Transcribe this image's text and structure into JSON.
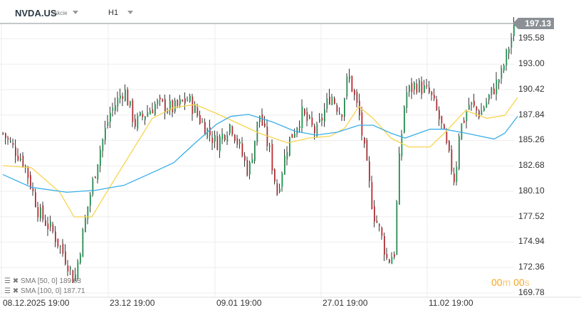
{
  "header": {
    "symbol": "NVDA.US",
    "type": "Akcie",
    "timeframe": "H1"
  },
  "current_price": "197.13",
  "timer": {
    "m": "00",
    "m_unit": "m",
    "s": "00",
    "s_unit": "s"
  },
  "legend": [
    {
      "label": "SMA [50, 0]",
      "value": "189.63",
      "color": "#f7d44c"
    },
    {
      "label": "SMA [100, 0]",
      "value": "187.71",
      "color": "#3aaee8"
    }
  ],
  "chart_data": {
    "type": "candlestick",
    "y_ticks": [
      "195.58",
      "193.00",
      "190.42",
      "187.84",
      "185.26",
      "182.68",
      "180.10",
      "177.52",
      "174.94",
      "172.36",
      "169.78"
    ],
    "ylim": [
      169.78,
      197.13
    ],
    "x_ticks": [
      {
        "label": "08.12.2025  19:00",
        "t": 0
      },
      {
        "label": "23.12  19:00",
        "t": 30
      },
      {
        "label": "09.01  19:00",
        "t": 60
      },
      {
        "label": "27.01  19:00",
        "t": 90
      },
      {
        "label": "11.02  19:00",
        "t": 120
      }
    ],
    "price_path": [
      [
        0,
        186
      ],
      [
        6,
        183
      ],
      [
        10,
        178
      ],
      [
        14,
        176
      ],
      [
        18,
        173
      ],
      [
        20,
        171
      ],
      [
        22,
        175
      ],
      [
        24,
        179
      ],
      [
        27,
        184
      ],
      [
        30,
        188
      ],
      [
        34,
        190.5
      ],
      [
        37,
        187
      ],
      [
        40,
        188
      ],
      [
        43,
        189
      ],
      [
        48,
        188.5
      ],
      [
        52,
        189.5
      ],
      [
        56,
        187
      ],
      [
        60,
        185
      ],
      [
        64,
        187
      ],
      [
        67,
        184
      ],
      [
        69,
        182
      ],
      [
        72,
        188
      ],
      [
        75,
        184
      ],
      [
        77,
        180
      ],
      [
        80,
        185
      ],
      [
        84,
        188
      ],
      [
        88,
        186
      ],
      [
        92,
        190
      ],
      [
        95,
        188
      ],
      [
        97,
        192
      ],
      [
        100,
        188
      ],
      [
        102,
        183
      ],
      [
        104,
        178
      ],
      [
        106,
        176
      ],
      [
        108,
        173
      ],
      [
        110,
        174
      ],
      [
        111,
        182
      ],
      [
        113,
        190
      ],
      [
        116,
        191
      ],
      [
        120,
        190
      ],
      [
        123,
        187
      ],
      [
        125,
        184
      ],
      [
        127,
        181
      ],
      [
        128,
        186
      ],
      [
        131,
        189
      ],
      [
        134,
        188
      ],
      [
        137,
        190
      ],
      [
        140,
        192
      ],
      [
        143,
        196
      ],
      [
        144,
        197.13
      ]
    ],
    "sma50": [
      [
        0,
        182.7
      ],
      [
        8,
        182.5
      ],
      [
        16,
        180
      ],
      [
        20,
        177.5
      ],
      [
        25,
        177.5
      ],
      [
        30,
        180.5
      ],
      [
        36,
        184
      ],
      [
        42,
        187.5
      ],
      [
        48,
        188.6
      ],
      [
        54,
        188.9
      ],
      [
        60,
        188
      ],
      [
        66,
        187
      ],
      [
        72,
        186
      ],
      [
        80,
        185
      ],
      [
        86,
        185.5
      ],
      [
        92,
        185.7
      ],
      [
        96,
        186.5
      ],
      [
        100,
        188.7
      ],
      [
        104,
        187.5
      ],
      [
        109,
        185.5
      ],
      [
        114,
        184.6
      ],
      [
        120,
        184.6
      ],
      [
        124,
        186
      ],
      [
        130,
        188.3
      ],
      [
        136,
        187.5
      ],
      [
        141,
        187.8
      ],
      [
        144.6,
        189.63
      ]
    ],
    "sma100": [
      [
        0,
        181.8
      ],
      [
        8,
        180.5
      ],
      [
        18,
        180
      ],
      [
        26,
        180.2
      ],
      [
        34,
        180.7
      ],
      [
        42,
        182
      ],
      [
        48,
        183
      ],
      [
        54,
        185
      ],
      [
        60,
        186.9
      ],
      [
        64,
        187.7
      ],
      [
        69,
        187.9
      ],
      [
        76,
        187.1
      ],
      [
        82,
        186.2
      ],
      [
        88,
        185.8
      ],
      [
        94,
        186.1
      ],
      [
        100,
        186.8
      ],
      [
        104,
        186.8
      ],
      [
        109,
        186
      ],
      [
        113,
        185.5
      ],
      [
        120,
        186.4
      ],
      [
        124,
        186.4
      ],
      [
        130,
        186
      ],
      [
        138,
        185.4
      ],
      [
        141,
        186
      ],
      [
        144.6,
        187.71
      ]
    ]
  }
}
